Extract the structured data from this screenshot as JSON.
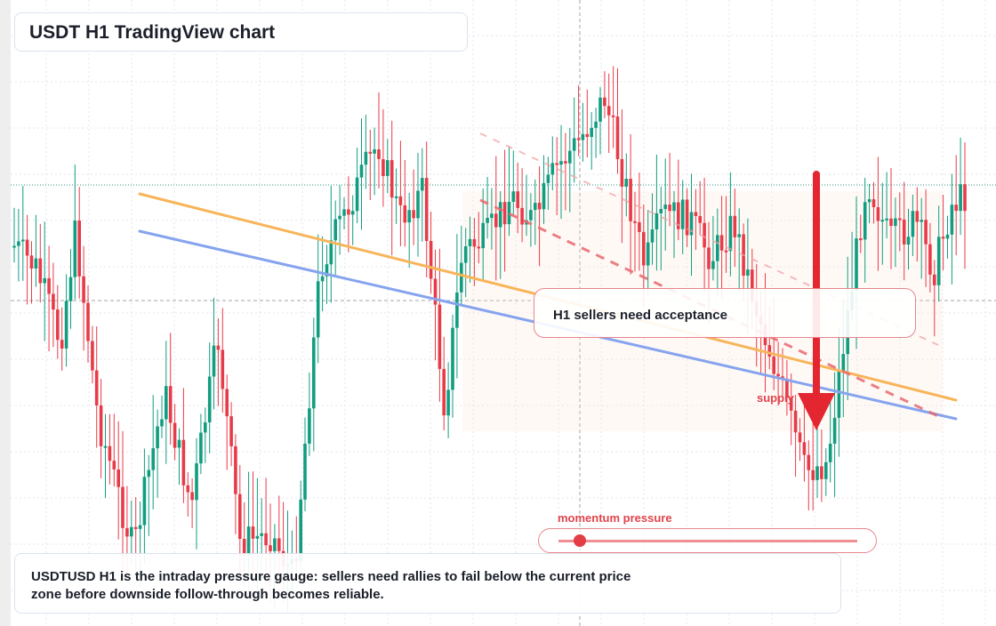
{
  "header": {
    "title": "USDT H1 TradingView chart"
  },
  "chart_data": {
    "type": "candlestick",
    "symbol": "USDTUSD",
    "timeframe": "H1",
    "price_axis_visible": false,
    "grid": true,
    "candles_visible": 220,
    "colors": {
      "up": "#119d80",
      "down": "#e83b48",
      "orange_trend": "#f7b55a",
      "blue_trend": "#86a4ee",
      "signal": "#e3262f"
    },
    "annotations": {
      "callout": "H1 sellers need acceptance",
      "zone_label": "supply",
      "arrow_direction": "down"
    }
  },
  "momentum": {
    "label": "momentum pressure",
    "level": 0.07
  },
  "caption": {
    "text": "USDTUSD H1 is the intraday pressure gauge: sellers need rallies to fail below the current price zone before downside follow-through becomes reliable."
  }
}
